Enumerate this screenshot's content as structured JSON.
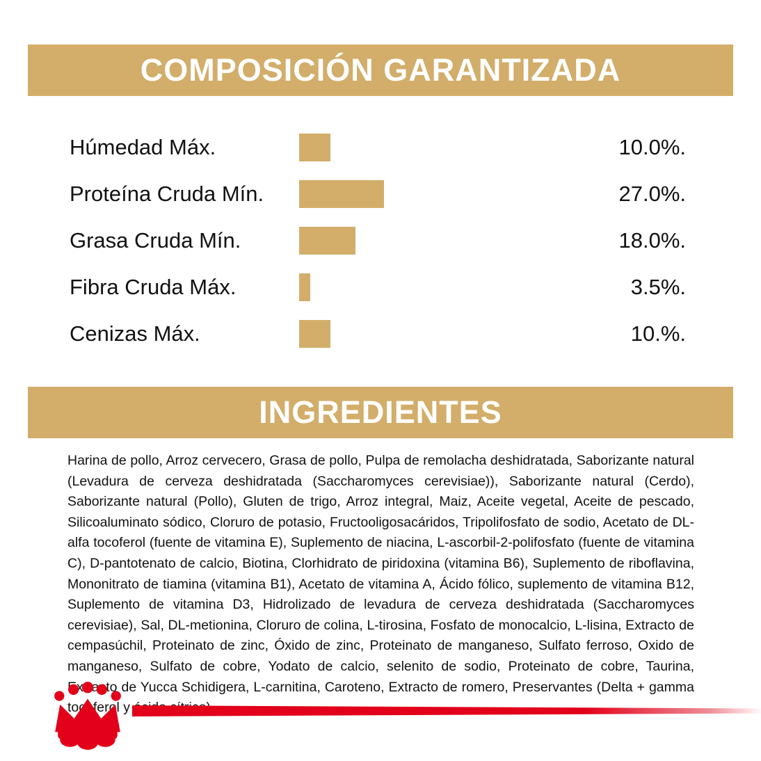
{
  "colors": {
    "banner_gold": "#D2AE6A",
    "bar_gold": "#D2AE6A",
    "text": "#111111",
    "brand_red": "#E2001A"
  },
  "composition": {
    "title": "COMPOSICIÓN GARANTIZADA",
    "rows": [
      {
        "label": "Húmedad Máx.",
        "value": 10,
        "display": "10.0%."
      },
      {
        "label": "Proteína Cruda Mín.",
        "value": 27,
        "display": "27.0%."
      },
      {
        "label": "Grasa Cruda Mín.",
        "value": 18,
        "display": "18.0%."
      },
      {
        "label": "Fibra Cruda Máx.",
        "value": 3.5,
        "display": "3.5%."
      },
      {
        "label": "Cenizas Máx.",
        "value": 10,
        "display": "10.%."
      }
    ]
  },
  "ingredients": {
    "title": "INGREDIENTES",
    "text": "Harina de pollo, Arroz cervecero, Grasa de pollo, Pulpa de remolacha deshidratada, Saborizante natural (Levadura de cerveza deshidratada (Saccharomyces cerevisiae)), Saborizante natural (Cerdo), Saborizante natural (Pollo), Gluten de trigo, Arroz integral, Maiz, Aceite vegetal, Aceite de pescado, Silicoaluminato sódico, Cloruro de potasio, Fructooligosacáridos, Tripolifosfato de sodio, Acetato de DL-alfa tocoferol (fuente de vitamina E), Suplemento de niacina, L-ascorbil-2-polifosfato (fuente de vitamina C), D-pantotenato de calcio, Biotina, Clorhidrato de piridoxina (vitamina B6), Suplemento de riboflavina, Mononitrato de tiamina (vitamina B1), Acetato de vitamina A, Ácido fólico, suplemento de vitamina B12, Suplemento de vitamina D3, Hidrolizado de levadura de cerveza deshidratada (Saccharomyces cerevisiae), Sal, DL-metionina, Cloruro de colina, L-tirosina, Fosfato de monocalcio, L-lisina, Extracto de cempasúchil, Proteinato de zinc, Óxido de zinc, Proteinato de manganeso, Sulfato ferroso, Oxido de manganeso, Sulfato de cobre, Yodato de calcio, selenito de sodio, Proteinato de cobre, Taurina, Extracto de Yucca Schidigera, L-carnitina, Caroteno, Extracto de romero, Preservantes (Delta + gamma tocoferol y ácido cítrico)"
  },
  "brand": {
    "logo_icon": "royal-canin-crown-logo"
  },
  "chart_data": {
    "type": "bar",
    "orientation": "horizontal",
    "title": "COMPOSICIÓN GARANTIZADA",
    "categories": [
      "Húmedad Máx.",
      "Proteína Cruda Mín.",
      "Grasa Cruda Mín.",
      "Fibra Cruda Máx.",
      "Cenizas Máx."
    ],
    "values": [
      10.0,
      27.0,
      18.0,
      3.5,
      10.0
    ],
    "value_labels": [
      "10.0%.",
      "27.0%.",
      "18.0%.",
      "3.5%.",
      "10.%."
    ],
    "unit": "%",
    "bar_color": "#D2AE6A",
    "xlabel": "",
    "ylabel": "",
    "legend": false,
    "grid": false
  }
}
